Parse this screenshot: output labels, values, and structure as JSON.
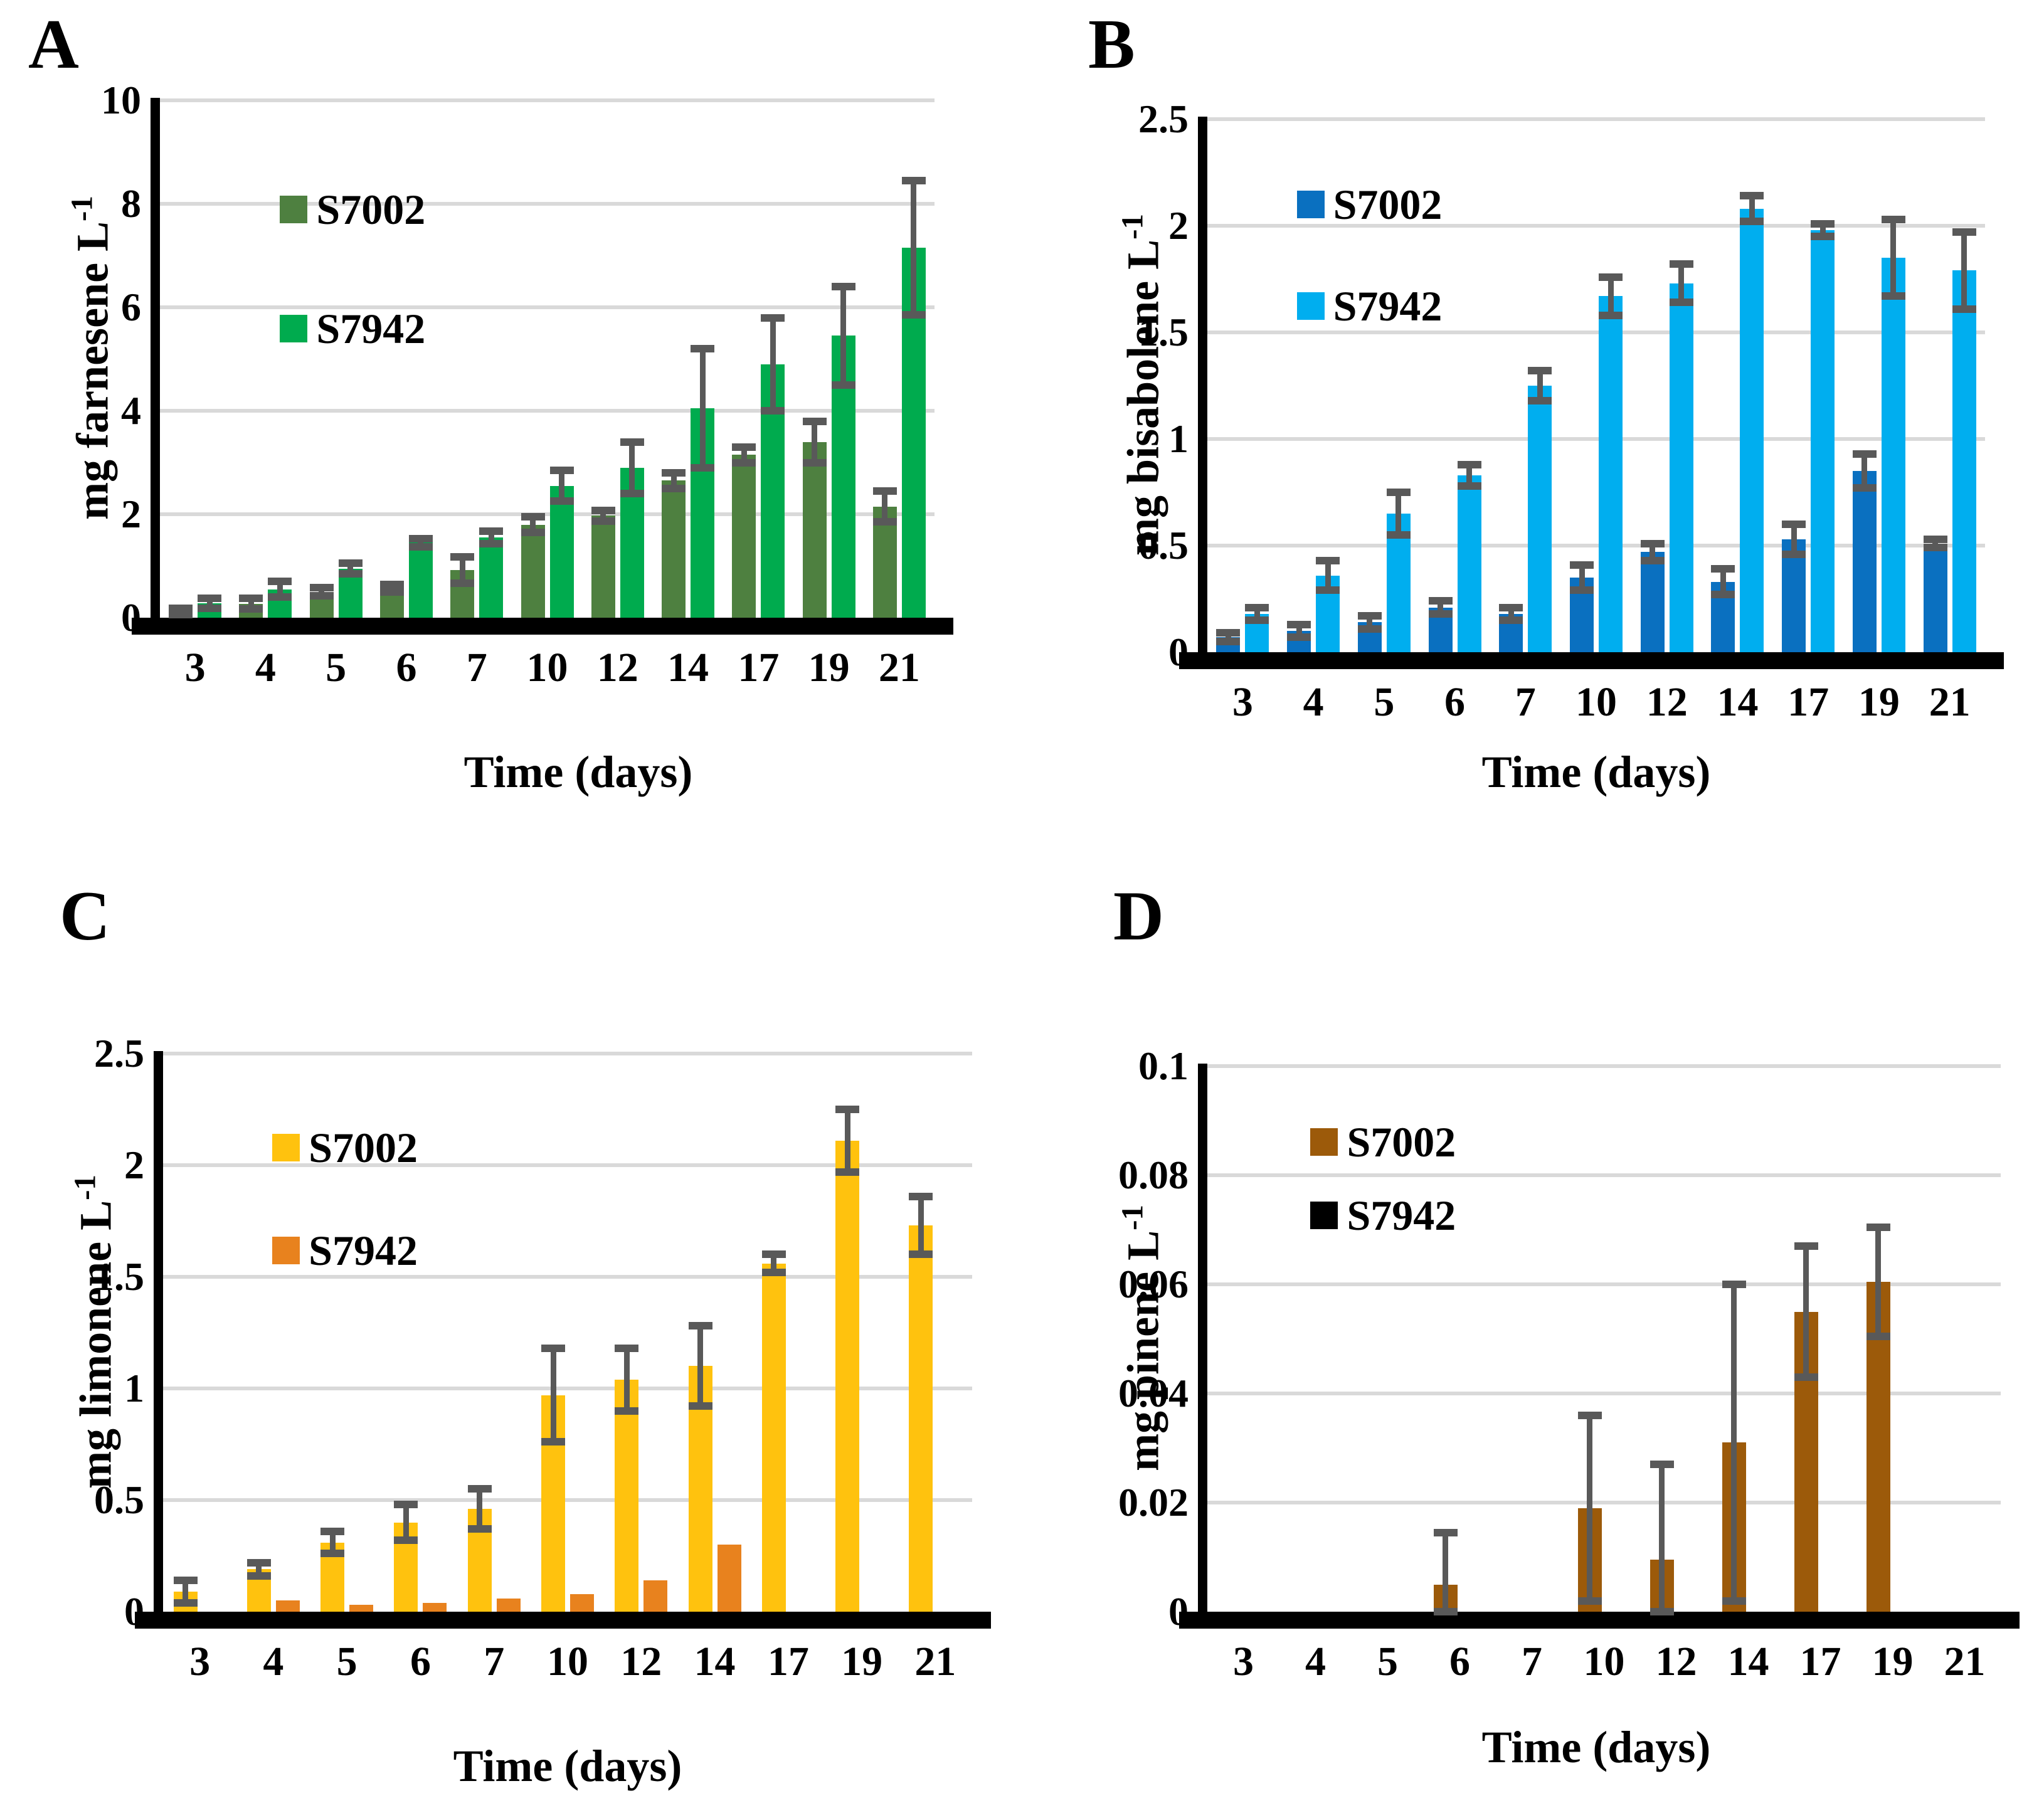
{
  "figure_type": "four-panel grouped bar chart figure",
  "colors": {
    "grid": "#D9D9D9",
    "axis": "#000000",
    "error_bar": "#595959",
    "background": "#FFFFFF"
  },
  "chart_data": [
    {
      "type": "bar",
      "letter": "A",
      "ylabel_base": "mg farnesene L",
      "ylabel_sup": "-1",
      "xlabel": "Time (days)",
      "ymax": 10,
      "yticks": [
        "0",
        "2",
        "4",
        "6",
        "8",
        "10"
      ],
      "grid": true,
      "legend_position": "inside-upper-left",
      "categories": [
        "3",
        "4",
        "5",
        "6",
        "7",
        "10",
        "12",
        "14",
        "17",
        "19",
        "21"
      ],
      "series": [
        {
          "name": "S7002",
          "color": "#4E8040",
          "values": [
            0.12,
            0.27,
            0.5,
            0.57,
            0.92,
            1.8,
            1.97,
            2.65,
            3.15,
            3.4,
            2.15
          ],
          "errors": [
            0.06,
            0.1,
            0.08,
            0.07,
            0.25,
            0.15,
            0.1,
            0.15,
            0.15,
            0.4,
            0.3
          ]
        },
        {
          "name": "S7942",
          "color": "#00AB4E",
          "values": [
            0.28,
            0.55,
            0.95,
            1.45,
            1.55,
            2.55,
            2.9,
            4.05,
            4.9,
            5.45,
            7.15
          ],
          "errors": [
            0.1,
            0.15,
            0.1,
            0.08,
            0.12,
            0.3,
            0.5,
            1.15,
            0.9,
            0.95,
            1.3
          ]
        }
      ],
      "legend_pos": {
        "x": 0.155,
        "ys": [
          0.17,
          0.4
        ]
      }
    },
    {
      "type": "bar",
      "letter": "B",
      "ylabel_base": "mg bisabolene L",
      "ylabel_sup": "-1",
      "xlabel": "Time (days)",
      "ymax": 2.5,
      "yticks": [
        "0",
        "0.5",
        "1",
        "1.5",
        "2",
        "2.5"
      ],
      "grid": true,
      "legend_position": "inside-upper-left",
      "categories": [
        "3",
        "4",
        "5",
        "6",
        "7",
        "10",
        "12",
        "14",
        "17",
        "19",
        "21"
      ],
      "series": [
        {
          "name": "S7002",
          "color": "#0A70C0",
          "values": [
            0.07,
            0.1,
            0.14,
            0.21,
            0.18,
            0.35,
            0.47,
            0.33,
            0.53,
            0.85,
            0.51
          ],
          "errors": [
            0.02,
            0.03,
            0.03,
            0.03,
            0.03,
            0.06,
            0.04,
            0.06,
            0.07,
            0.08,
            0.02
          ]
        },
        {
          "name": "S7942",
          "color": "#00AEEF",
          "values": [
            0.18,
            0.36,
            0.65,
            0.83,
            1.25,
            1.67,
            1.73,
            2.08,
            1.98,
            1.85,
            1.79
          ],
          "errors": [
            0.03,
            0.07,
            0.1,
            0.05,
            0.07,
            0.09,
            0.09,
            0.06,
            0.03,
            0.18,
            0.18
          ]
        }
      ],
      "legend_pos": {
        "x": 0.115,
        "ys": [
          0.12,
          0.31
        ]
      }
    },
    {
      "type": "bar",
      "letter": "C",
      "ylabel_base": "mg limonene L",
      "ylabel_sup": "-1",
      "xlabel": "Time (days)",
      "ymax": 2.5,
      "yticks": [
        "0",
        "0.5",
        "1",
        "1.5",
        "2",
        "2.5"
      ],
      "grid": true,
      "legend_position": "inside-upper-left",
      "categories": [
        "3",
        "4",
        "5",
        "6",
        "7",
        "10",
        "12",
        "14",
        "17",
        "19",
        "21"
      ],
      "series": [
        {
          "name": "S7002",
          "color": "#FFC20E",
          "values": [
            0.09,
            0.19,
            0.31,
            0.4,
            0.46,
            0.97,
            1.04,
            1.1,
            1.56,
            2.11,
            1.73
          ],
          "errors": [
            0.05,
            0.03,
            0.05,
            0.08,
            0.09,
            0.21,
            0.14,
            0.18,
            0.04,
            0.14,
            0.13
          ]
        },
        {
          "name": "S7942",
          "color": "#E8821E",
          "values": [
            0,
            0.05,
            0.03,
            0.04,
            0.06,
            0.08,
            0.14,
            0.3,
            0,
            0,
            0
          ],
          "errors": [
            0,
            0,
            0,
            0,
            0,
            0,
            0,
            0,
            0,
            0,
            0
          ]
        }
      ],
      "legend_pos": {
        "x": 0.135,
        "ys": [
          0.13,
          0.315
        ]
      }
    },
    {
      "type": "bar",
      "letter": "D",
      "ylabel_base": "mg pinene L",
      "ylabel_sup": "-1",
      "xlabel": "Time (days)",
      "ymax": 0.1,
      "yticks": [
        "0",
        "0.02",
        "0.04",
        "0.06",
        "0.08",
        "0.1"
      ],
      "grid": true,
      "legend_position": "inside-upper-left",
      "categories": [
        "3",
        "4",
        "5",
        "6",
        "7",
        "10",
        "12",
        "14",
        "17",
        "19",
        "21"
      ],
      "series": [
        {
          "name": "S7002",
          "color": "#9C5A0A",
          "values": [
            0,
            0,
            0,
            0.005,
            0,
            0.019,
            0.0095,
            0.031,
            0.055,
            0.0605,
            0
          ],
          "errors": [
            0,
            0,
            0,
            0.0095,
            0,
            0.017,
            0.0175,
            0.029,
            0.012,
            0.01,
            0
          ]
        },
        {
          "name": "S7942",
          "color": "#000000",
          "values": [
            0,
            0,
            0,
            0,
            0,
            0,
            0,
            0,
            0,
            0,
            0
          ],
          "errors": [
            0,
            0,
            0,
            0,
            0,
            0,
            0,
            0,
            0,
            0,
            0
          ]
        }
      ],
      "legend_pos": {
        "x": 0.13,
        "ys": [
          0.1,
          0.235
        ]
      }
    }
  ]
}
